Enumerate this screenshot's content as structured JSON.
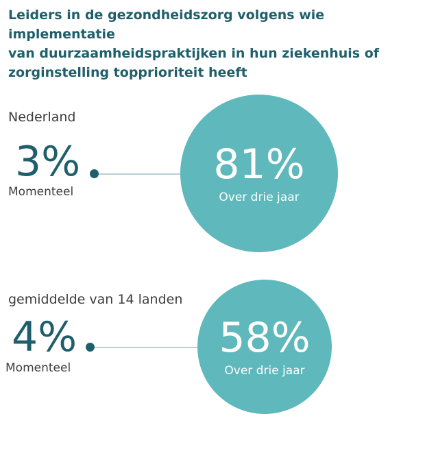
{
  "title_lines": [
    "Leiders in de gezondheidszorg volgens wie implementatie",
    "van duurzaamheidspraktijken in hun ziekenhuis of",
    "zorginstelling topprioriteit heeft"
  ],
  "colors": {
    "title": "#1f5f6b",
    "current_value": "#1f5f6b",
    "circle": "#5fb8bb",
    "line": "#b9cfd3"
  },
  "chart_data": {
    "type": "other",
    "title": "Leiders in de gezondheidszorg volgens wie implementatie van duurzaamheidspraktijken in hun ziekenhuis of zorginstelling topprioriteit heeft",
    "groups": [
      {
        "region": "Nederland",
        "current": {
          "value": 3,
          "display": "3%",
          "label": "Momenteel"
        },
        "future": {
          "value": 81,
          "display": "81%",
          "label": "Over drie jaar"
        }
      },
      {
        "region": "gemiddelde van 14 landen",
        "current": {
          "value": 4,
          "display": "4%",
          "label": "Momenteel"
        },
        "future": {
          "value": 58,
          "display": "58%",
          "label": "Over drie jaar"
        }
      }
    ]
  }
}
